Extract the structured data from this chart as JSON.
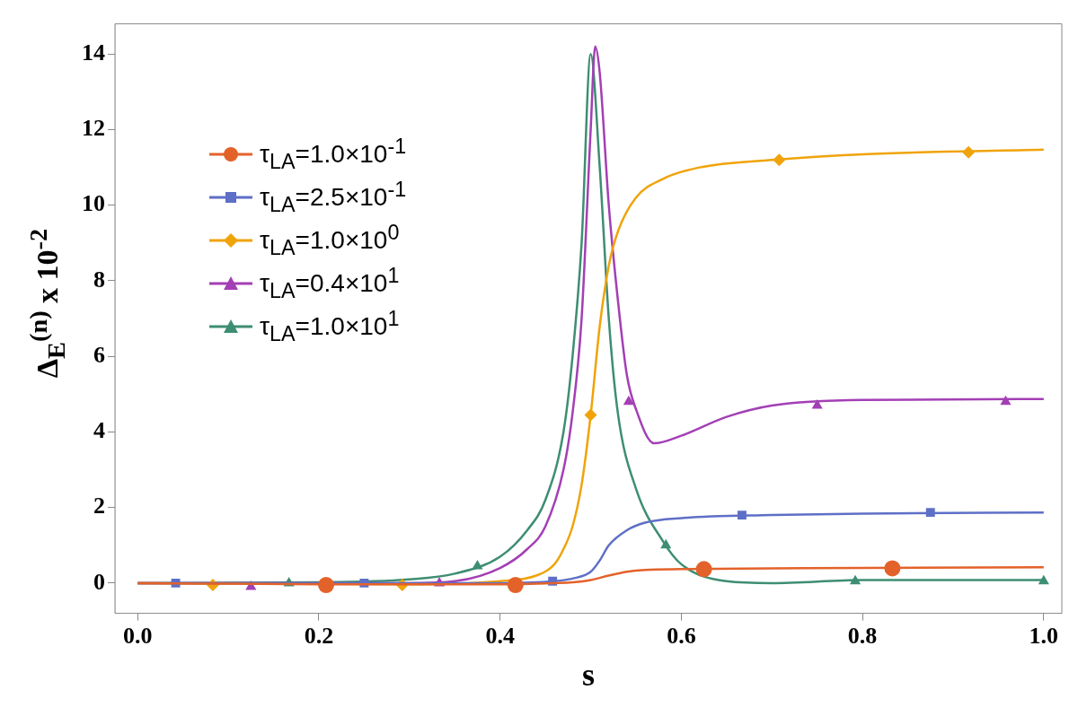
{
  "chart_data": {
    "type": "line",
    "xlabel": "s",
    "ylabel": "Δ$_{E}$$^{(n)}$ x 10$^{-2}$",
    "xlim": [
      -0.025,
      1.02
    ],
    "xticks": [
      {
        "value": 0,
        "label": "0.0"
      },
      0.2,
      0.4,
      0.6,
      0.8,
      {
        "value": 1,
        "label": "1.0"
      }
    ],
    "ylim": [
      -0.8,
      14.8
    ],
    "yticks": [
      0,
      2,
      4,
      6,
      8,
      10,
      12,
      14
    ],
    "grid": false,
    "legend": "left",
    "series": [
      {
        "color": "#e3622a",
        "x": [
          0,
          0.2,
          0.4,
          0.46,
          0.48,
          0.5,
          0.52,
          0.54,
          0.56,
          0.6,
          0.7,
          0.8,
          1.0
        ],
        "values": [
          0,
          -0.03,
          -0.03,
          0,
          0.02,
          0.08,
          0.2,
          0.3,
          0.35,
          0.37,
          0.39,
          0.4,
          0.42
        ]
      },
      {
        "name": "τ$_{LA}$=1.0×10$^{-1}$",
        "color": "#e3622a",
        "marker": "circle",
        "type": "scatter",
        "x": [
          0.208,
          0.417,
          0.625,
          0.833
        ],
        "values": [
          -0.05,
          -0.05,
          0.37,
          0.39
        ]
      },
      {
        "color": "#5e6fc7",
        "x": [
          0,
          0.2,
          0.4,
          0.46,
          0.48,
          0.5,
          0.51,
          0.52,
          0.54,
          0.56,
          0.6,
          0.7,
          0.8,
          1.0
        ],
        "values": [
          0,
          0,
          0,
          0.05,
          0.12,
          0.3,
          0.6,
          1.0,
          1.4,
          1.6,
          1.72,
          1.8,
          1.84,
          1.87
        ]
      },
      {
        "name": "τ$_{LA}$=2.5×10$^{-1}$",
        "color": "#5e6fc7",
        "marker": "square",
        "type": "scatter",
        "x": [
          0.042,
          0.25,
          0.458,
          0.667,
          0.875
        ],
        "values": [
          0,
          0,
          0.05,
          1.8,
          1.87
        ]
      },
      {
        "color": "#f0a30a",
        "x": [
          0,
          0.3,
          0.4,
          0.44,
          0.46,
          0.47,
          0.48,
          0.49,
          0.5,
          0.51,
          0.52,
          0.53,
          0.55,
          0.58,
          0.62,
          0.7,
          0.8,
          1.0
        ],
        "values": [
          0,
          -0.03,
          0.05,
          0.2,
          0.5,
          0.9,
          1.5,
          2.6,
          4.45,
          6.8,
          8.4,
          9.3,
          10.2,
          10.7,
          11.0,
          11.2,
          11.35,
          11.47
        ]
      },
      {
        "name": "τ$_{LA}$=1.0×10$^{0}$",
        "color": "#f0a30a",
        "marker": "diamond",
        "type": "scatter",
        "x": [
          0.083,
          0.292,
          0.5,
          0.708,
          0.917
        ],
        "values": [
          -0.05,
          -0.05,
          4.45,
          11.2,
          11.4
        ]
      },
      {
        "color": "#a33fb5",
        "x": [
          0,
          0.3,
          0.35,
          0.4,
          0.43,
          0.45,
          0.47,
          0.48,
          0.49,
          0.5,
          0.505,
          0.51,
          0.52,
          0.53,
          0.54,
          0.55,
          0.57,
          0.6,
          0.65,
          0.7,
          0.8,
          1.0
        ],
        "values": [
          0,
          0,
          0.05,
          0.4,
          0.9,
          1.5,
          3.0,
          4.5,
          7.0,
          12.0,
          14.2,
          13.5,
          10.0,
          7.5,
          5.5,
          4.6,
          3.7,
          3.9,
          4.4,
          4.7,
          4.85,
          4.87
        ]
      },
      {
        "name": "τ$_{LA}$=0.4×10$^{1}$",
        "color": "#a33fb5",
        "marker": "triangle",
        "type": "scatter",
        "x": [
          0.125,
          0.333,
          0.542,
          0.75,
          0.958
        ],
        "values": [
          -0.1,
          0,
          4.8,
          4.7,
          4.8
        ]
      },
      {
        "color": "#3e8e72",
        "x": [
          0,
          0.2,
          0.3,
          0.35,
          0.4,
          0.43,
          0.45,
          0.47,
          0.48,
          0.49,
          0.5,
          0.51,
          0.52,
          0.53,
          0.55,
          0.58,
          0.6,
          0.65,
          0.7,
          0.8,
          1.0
        ],
        "values": [
          0,
          0.02,
          0.1,
          0.25,
          0.7,
          1.4,
          2.2,
          4.0,
          6.0,
          9.0,
          14.0,
          11.0,
          7.0,
          4.5,
          2.5,
          1.1,
          0.5,
          0.05,
          0,
          0.08,
          0.08
        ]
      },
      {
        "name": "τ$_{LA}$=1.0×10$^{1}$",
        "color": "#3e8e72",
        "marker": "triangle",
        "type": "scatter",
        "x": [
          0.167,
          0.375,
          0.583,
          0.792,
          1.0
        ],
        "values": [
          0,
          0.45,
          1.0,
          0.05,
          0.05
        ]
      }
    ]
  }
}
